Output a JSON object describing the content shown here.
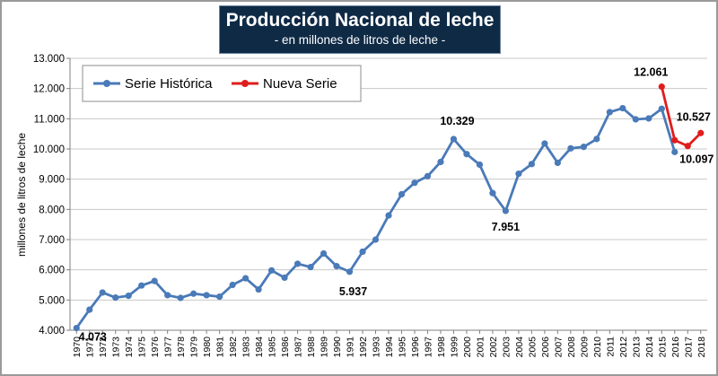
{
  "chart_data": {
    "type": "line",
    "title": "Producción Nacional de leche",
    "subtitle": "- en millones de litros de leche -",
    "ylabel": "millones de litros de leche",
    "ylim": [
      4000,
      13000
    ],
    "yticks": [
      "4.000",
      "5.000",
      "6.000",
      "7.000",
      "8.000",
      "9.000",
      "10.000",
      "11.000",
      "12.000",
      "13.000"
    ],
    "grid": true,
    "legend_position": "top-left",
    "series": [
      {
        "name": "Serie Histórica",
        "color": "#4a7ab8",
        "x": [
          1970,
          1971,
          1972,
          1973,
          1974,
          1975,
          1976,
          1977,
          1978,
          1979,
          1980,
          1981,
          1982,
          1983,
          1984,
          1985,
          1986,
          1987,
          1988,
          1989,
          1990,
          1991,
          1992,
          1993,
          1994,
          1995,
          1996,
          1997,
          1998,
          1999,
          2000,
          2001,
          2002,
          2003,
          2004,
          2005,
          2006,
          2007,
          2008,
          2009,
          2010,
          2011,
          2012,
          2013,
          2014,
          2015,
          2016
        ],
        "values": [
          4073,
          4680,
          5250,
          5080,
          5140,
          5480,
          5630,
          5160,
          5070,
          5210,
          5160,
          5110,
          5500,
          5720,
          5350,
          5980,
          5740,
          6200,
          6090,
          6540,
          6120,
          5937,
          6600,
          7000,
          7800,
          8500,
          8880,
          9100,
          9570,
          10329,
          9830,
          9480,
          8540,
          7951,
          9180,
          9500,
          10180,
          9540,
          10020,
          10070,
          10330,
          11220,
          11350,
          10980,
          11010,
          11330,
          9900
        ]
      },
      {
        "name": "Nueva Serie",
        "color": "#e01d1d",
        "x": [
          2015,
          2016,
          2017,
          2018
        ],
        "values": [
          12061,
          10290,
          10097,
          10527
        ]
      }
    ],
    "annotations": [
      {
        "text": "4.073",
        "year": 1970,
        "value": 4073
      },
      {
        "text": "5.937",
        "year": 1991,
        "value": 5937
      },
      {
        "text": "10.329",
        "year": 1999,
        "value": 10329
      },
      {
        "text": "7.951",
        "year": 2003,
        "value": 7951
      },
      {
        "text": "12.061",
        "year": 2015,
        "value": 12061
      },
      {
        "text": "10.527",
        "year": 2018,
        "value": 10527
      },
      {
        "text": "10.097",
        "year": 2017,
        "value": 10097
      }
    ]
  }
}
